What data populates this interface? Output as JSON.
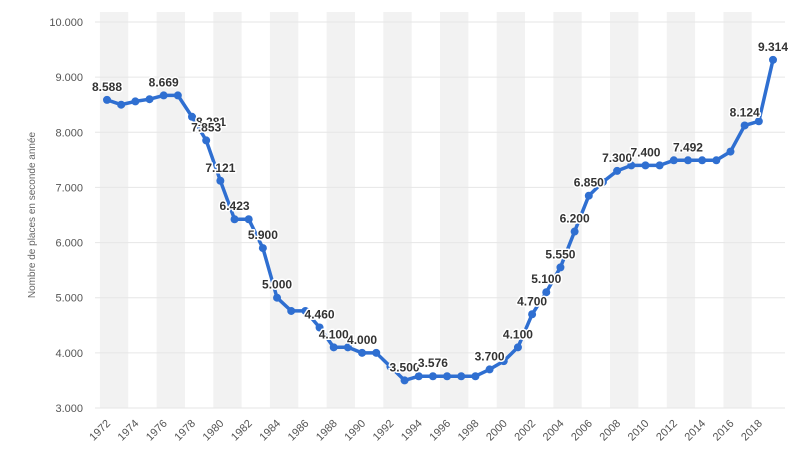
{
  "chart_data": {
    "type": "line",
    "title": "",
    "xlabel": "",
    "ylabel": "Nombre de places en seconde année",
    "ylim": [
      3000,
      10000
    ],
    "ytick_values": [
      3000,
      4000,
      5000,
      6000,
      7000,
      8000,
      9000,
      10000
    ],
    "ytick_labels": [
      "3.000",
      "4.000",
      "5.000",
      "6.000",
      "7.000",
      "8.000",
      "9.000",
      "10.000"
    ],
    "xtick_labels": [
      "1972",
      "1974",
      "1976",
      "1978",
      "1980",
      "1982",
      "1984",
      "1986",
      "1988",
      "1990",
      "1992",
      "1994",
      "1996",
      "1998",
      "2000",
      "2002",
      "2004",
      "2006",
      "2008",
      "2010",
      "2012",
      "2014",
      "2016",
      "2018"
    ],
    "grid": "alternating-column-bands",
    "series": [
      {
        "name": "Nombre de places",
        "color": "#2f6fd1",
        "x": [
          1972,
          1973,
          1974,
          1975,
          1976,
          1977,
          1978,
          1979,
          1980,
          1981,
          1982,
          1983,
          1984,
          1985,
          1986,
          1987,
          1988,
          1989,
          1990,
          1991,
          1992,
          1993,
          1994,
          1995,
          1996,
          1997,
          1998,
          1999,
          2000,
          2001,
          2002,
          2003,
          2004,
          2005,
          2006,
          2007,
          2008,
          2009,
          2010,
          2011,
          2012,
          2013,
          2014,
          2015,
          2016,
          2017,
          2018,
          2019
        ],
        "values": [
          8588,
          8500,
          8560,
          8600,
          8669,
          8669,
          8281,
          7853,
          7121,
          6423,
          6423,
          5900,
          5000,
          4760,
          4760,
          4460,
          4100,
          4100,
          4000,
          4000,
          3750,
          3500,
          3576,
          3576,
          3576,
          3576,
          3576,
          3700,
          3850,
          4100,
          4700,
          5100,
          5550,
          6200,
          6850,
          7100,
          7300,
          7400,
          7400,
          7400,
          7492,
          7492,
          7492,
          7492,
          7650,
          8124,
          8200,
          9314
        ]
      }
    ],
    "data_labels": [
      {
        "i": 0,
        "text": "8.588",
        "pos": "above"
      },
      {
        "i": 4,
        "text": "8.669",
        "pos": "above"
      },
      {
        "i": 6,
        "text": "8.281",
        "pos": "right"
      },
      {
        "i": 7,
        "text": "7.853",
        "pos": "above"
      },
      {
        "i": 8,
        "text": "7.121",
        "pos": "above"
      },
      {
        "i": 9,
        "text": "6.423",
        "pos": "above"
      },
      {
        "i": 11,
        "text": "5.900",
        "pos": "above"
      },
      {
        "i": 12,
        "text": "5.000",
        "pos": "above"
      },
      {
        "i": 15,
        "text": "4.460",
        "pos": "above"
      },
      {
        "i": 16,
        "text": "4.100",
        "pos": "above"
      },
      {
        "i": 18,
        "text": "4.000",
        "pos": "above"
      },
      {
        "i": 21,
        "text": "3.500",
        "pos": "above"
      },
      {
        "i": 23,
        "text": "3.576",
        "pos": "above"
      },
      {
        "i": 27,
        "text": "3.700",
        "pos": "above"
      },
      {
        "i": 29,
        "text": "4.100",
        "pos": "above"
      },
      {
        "i": 30,
        "text": "4.700",
        "pos": "above"
      },
      {
        "i": 31,
        "text": "5.100",
        "pos": "above"
      },
      {
        "i": 32,
        "text": "5.550",
        "pos": "above"
      },
      {
        "i": 33,
        "text": "6.200",
        "pos": "above"
      },
      {
        "i": 34,
        "text": "6.850",
        "pos": "above"
      },
      {
        "i": 36,
        "text": "7.300",
        "pos": "above"
      },
      {
        "i": 38,
        "text": "7.400",
        "pos": "above"
      },
      {
        "i": 41,
        "text": "7.492",
        "pos": "above"
      },
      {
        "i": 45,
        "text": "8.124",
        "pos": "above"
      },
      {
        "i": 47,
        "text": "9.314",
        "pos": "above"
      }
    ]
  }
}
